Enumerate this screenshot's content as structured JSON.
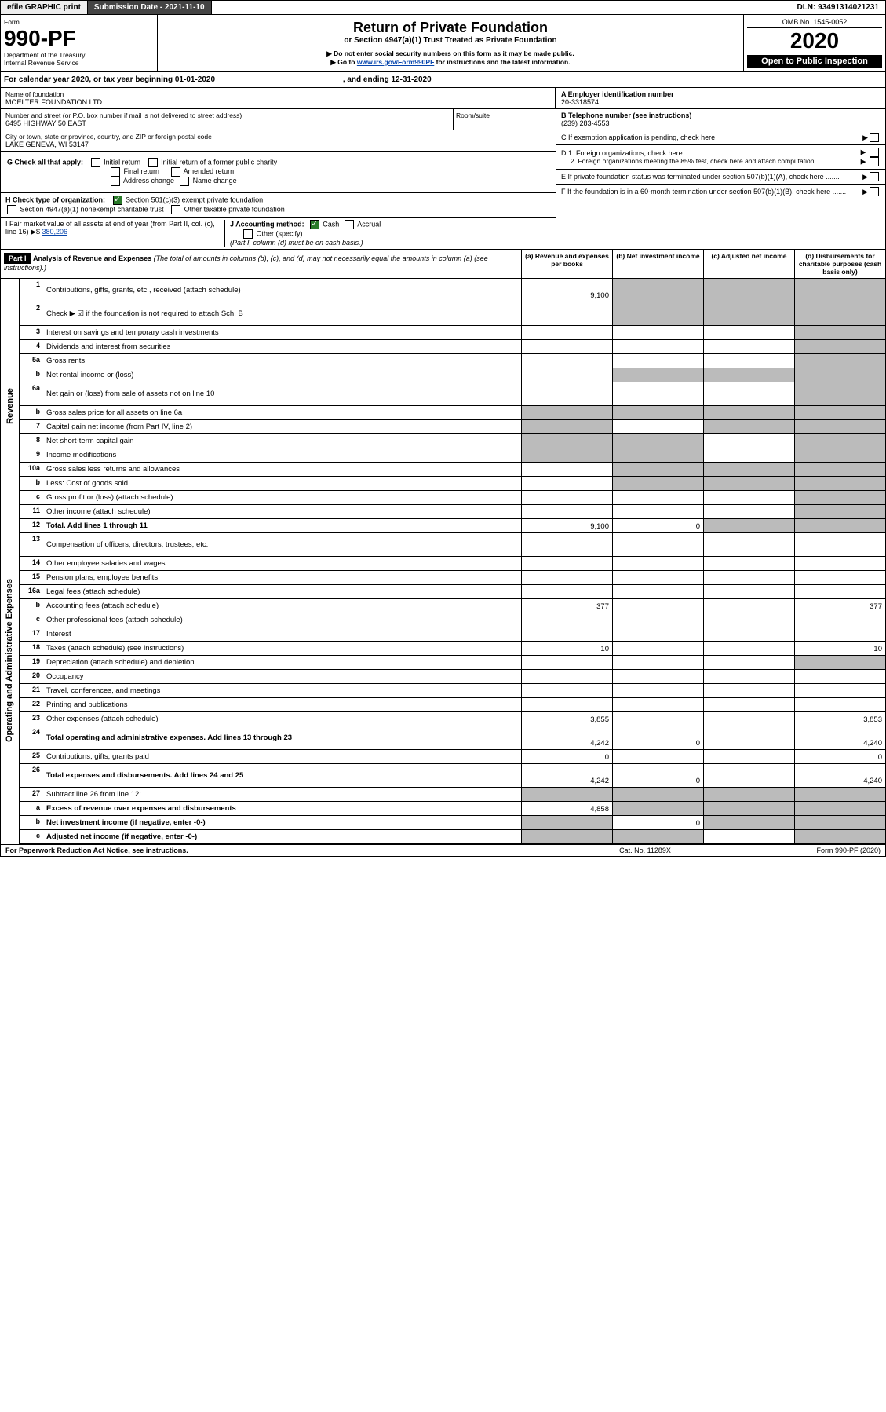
{
  "topbar": {
    "efile": "efile GRAPHIC print",
    "subdate": "Submission Date - 2021-11-10",
    "dln": "DLN: 93491314021231"
  },
  "header": {
    "form_label": "Form",
    "form_num": "990-PF",
    "dept": "Department of the Treasury",
    "irs": "Internal Revenue Service",
    "title": "Return of Private Foundation",
    "subtitle": "or Section 4947(a)(1) Trust Treated as Private Foundation",
    "note1": "▶ Do not enter social security numbers on this form as it may be made public.",
    "note2_pre": "▶ Go to ",
    "note2_link": "www.irs.gov/Form990PF",
    "note2_post": " for instructions and the latest information.",
    "omb": "OMB No. 1545-0052",
    "year": "2020",
    "open": "Open to Public Inspection"
  },
  "calyear": {
    "text": "For calendar year 2020, or tax year beginning 01-01-2020",
    "ending": ", and ending 12-31-2020"
  },
  "name": {
    "lbl": "Name of foundation",
    "val": "MOELTER FOUNDATION LTD",
    "addr_lbl": "Number and street (or P.O. box number if mail is not delivered to street address)",
    "addr": "6495 HIGHWAY 50 EAST",
    "room_lbl": "Room/suite",
    "city_lbl": "City or town, state or province, country, and ZIP or foreign postal code",
    "city": "LAKE GENEVA, WI  53147"
  },
  "right": {
    "a_lbl": "A Employer identification number",
    "a_val": "20-3318574",
    "b_lbl": "B Telephone number (see instructions)",
    "b_val": "(239) 283-4553",
    "c_lbl": "C If exemption application is pending, check here",
    "d1": "D 1. Foreign organizations, check here............",
    "d2": "2. Foreign organizations meeting the 85% test, check here and attach computation ...",
    "e": "E  If private foundation status was terminated under section 507(b)(1)(A), check here .......",
    "f": "F  If the foundation is in a 60-month termination under section 507(b)(1)(B), check here .......",
    "g_lbl": "G Check all that apply:",
    "g1": "Initial return",
    "g2": "Initial return of a former public charity",
    "g3": "Final return",
    "g4": "Amended return",
    "g5": "Address change",
    "g6": "Name change",
    "h_lbl": "H Check type of organization:",
    "h1": "Section 501(c)(3) exempt private foundation",
    "h2": "Section 4947(a)(1) nonexempt charitable trust",
    "h3": "Other taxable private foundation",
    "i_lbl": "I Fair market value of all assets at end of year (from Part II, col. (c), line 16) ▶$",
    "i_val": "380,206",
    "j_lbl": "J Accounting method:",
    "j1": "Cash",
    "j2": "Accrual",
    "j3": "Other (specify)",
    "j_note": "(Part I, column (d) must be on cash basis.)"
  },
  "part1": {
    "hdr": "Part I",
    "title": "Analysis of Revenue and Expenses",
    "title_sub": " (The total of amounts in columns (b), (c), and (d) may not necessarily equal the amounts in column (a) (see instructions).)",
    "col_a": "(a)   Revenue and expenses per books",
    "col_b": "(b)   Net investment income",
    "col_c": "(c)   Adjusted net income",
    "col_d": "(d)  Disbursements for charitable purposes (cash basis only)"
  },
  "sides": {
    "rev": "Revenue",
    "exp": "Operating and Administrative Expenses"
  },
  "rows": {
    "1": {
      "n": "1",
      "l": "Contributions, gifts, grants, etc., received (attach schedule)",
      "a": "9,100"
    },
    "2": {
      "n": "2",
      "l": "Check ▶ ☑ if the foundation is not required to attach Sch. B"
    },
    "3": {
      "n": "3",
      "l": "Interest on savings and temporary cash investments"
    },
    "4": {
      "n": "4",
      "l": "Dividends and interest from securities"
    },
    "5a": {
      "n": "5a",
      "l": "Gross rents"
    },
    "5b": {
      "n": "b",
      "l": "Net rental income or (loss)"
    },
    "6a": {
      "n": "6a",
      "l": "Net gain or (loss) from sale of assets not on line 10"
    },
    "6b": {
      "n": "b",
      "l": "Gross sales price for all assets on line 6a"
    },
    "7": {
      "n": "7",
      "l": "Capital gain net income (from Part IV, line 2)"
    },
    "8": {
      "n": "8",
      "l": "Net short-term capital gain"
    },
    "9": {
      "n": "9",
      "l": "Income modifications"
    },
    "10a": {
      "n": "10a",
      "l": "Gross sales less returns and allowances"
    },
    "10b": {
      "n": "b",
      "l": "Less: Cost of goods sold"
    },
    "10c": {
      "n": "c",
      "l": "Gross profit or (loss) (attach schedule)"
    },
    "11": {
      "n": "11",
      "l": "Other income (attach schedule)"
    },
    "12": {
      "n": "12",
      "l": "Total. Add lines 1 through 11",
      "a": "9,100",
      "b": "0",
      "bold": true
    },
    "13": {
      "n": "13",
      "l": "Compensation of officers, directors, trustees, etc."
    },
    "14": {
      "n": "14",
      "l": "Other employee salaries and wages"
    },
    "15": {
      "n": "15",
      "l": "Pension plans, employee benefits"
    },
    "16a": {
      "n": "16a",
      "l": "Legal fees (attach schedule)"
    },
    "16b": {
      "n": "b",
      "l": "Accounting fees (attach schedule)",
      "a": "377",
      "d": "377"
    },
    "16c": {
      "n": "c",
      "l": "Other professional fees (attach schedule)"
    },
    "17": {
      "n": "17",
      "l": "Interest"
    },
    "18": {
      "n": "18",
      "l": "Taxes (attach schedule) (see instructions)",
      "a": "10",
      "d": "10"
    },
    "19": {
      "n": "19",
      "l": "Depreciation (attach schedule) and depletion"
    },
    "20": {
      "n": "20",
      "l": "Occupancy"
    },
    "21": {
      "n": "21",
      "l": "Travel, conferences, and meetings"
    },
    "22": {
      "n": "22",
      "l": "Printing and publications"
    },
    "23": {
      "n": "23",
      "l": "Other expenses (attach schedule)",
      "a": "3,855",
      "d": "3,853"
    },
    "24": {
      "n": "24",
      "l": "Total operating and administrative expenses. Add lines 13 through 23",
      "a": "4,242",
      "b": "0",
      "d": "4,240",
      "bold": true
    },
    "25": {
      "n": "25",
      "l": "Contributions, gifts, grants paid",
      "a": "0",
      "d": "0"
    },
    "26": {
      "n": "26",
      "l": "Total expenses and disbursements. Add lines 24 and 25",
      "a": "4,242",
      "b": "0",
      "d": "4,240",
      "bold": true
    },
    "27": {
      "n": "27",
      "l": "Subtract line 26 from line 12:"
    },
    "27a": {
      "n": "a",
      "l": "Excess of revenue over expenses and disbursements",
      "a": "4,858",
      "bold": true
    },
    "27b": {
      "n": "b",
      "l": "Net investment income (if negative, enter -0-)",
      "b": "0",
      "bold": true
    },
    "27c": {
      "n": "c",
      "l": "Adjusted net income (if negative, enter -0-)",
      "bold": true
    }
  },
  "footer": {
    "left": "For Paperwork Reduction Act Notice, see instructions.",
    "mid": "Cat. No. 11289X",
    "right": "Form 990-PF (2020)"
  }
}
